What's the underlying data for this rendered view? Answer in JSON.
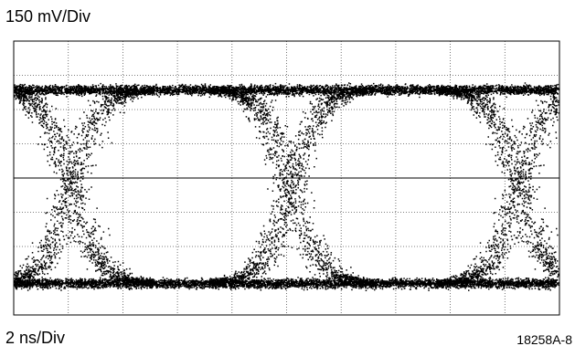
{
  "labels": {
    "vertical_scale": "150 mV/Div",
    "horizontal_scale": "2 ns/Div",
    "figure_id": "18258A-8"
  }
}
